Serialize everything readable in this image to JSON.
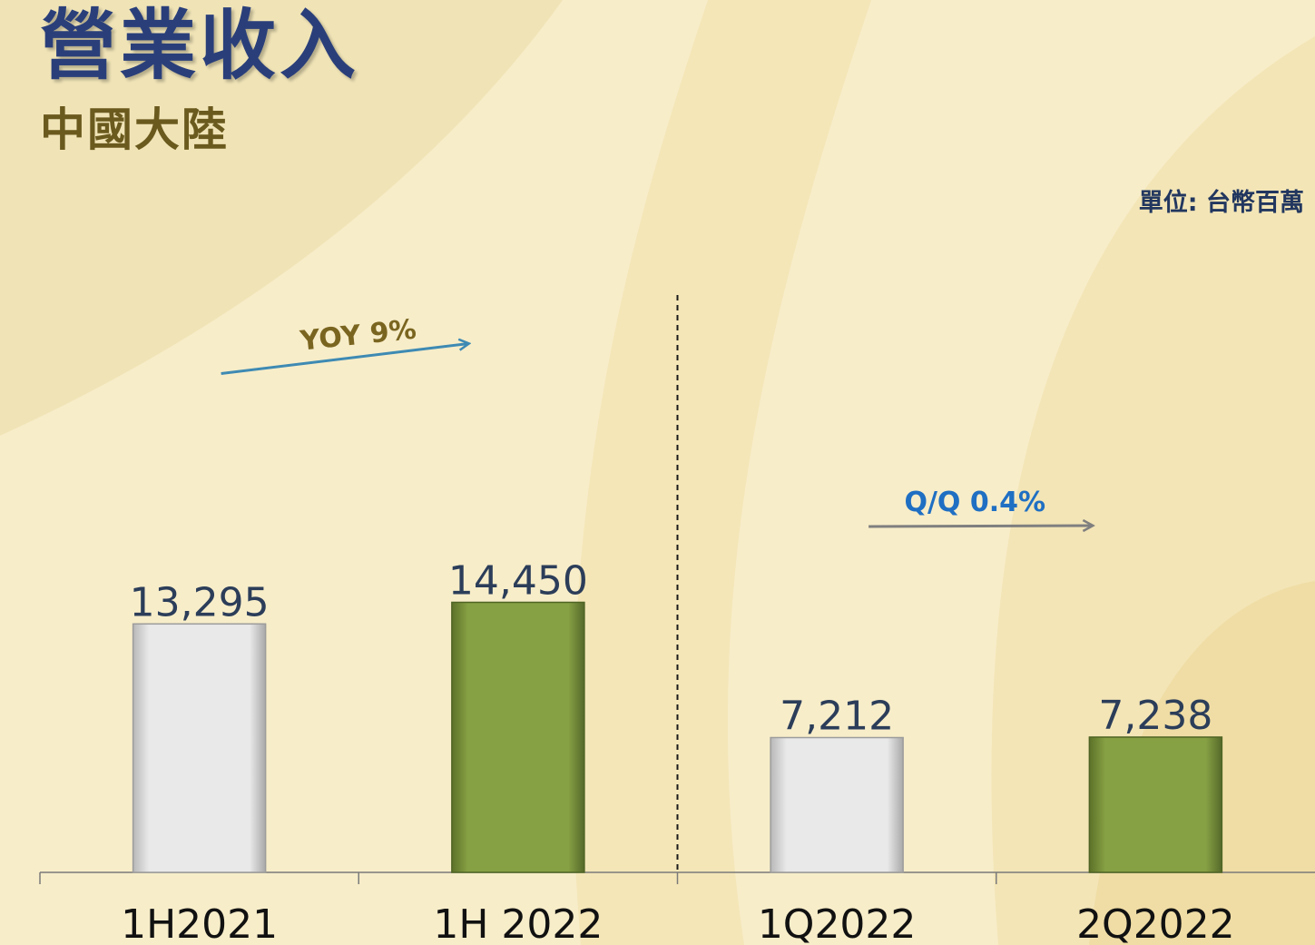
{
  "header": {
    "title": "營業收入",
    "subtitle": "中國大陸",
    "unit": "單位: 台幣百萬"
  },
  "colors": {
    "title": "#2a3f7a",
    "subtitle": "#6b5a1e",
    "unit": "#22375f",
    "bar_prior": "#e3e3e3",
    "bar_current": "#829b42",
    "value_label": "#2b3d59",
    "category_label": "#111111",
    "yoy_text": "#7a6520",
    "yoy_arrow": "#3e8ab3",
    "qoq_text": "#1f6fc3",
    "qoq_arrow": "#7f7f7f"
  },
  "chart_data": {
    "type": "bar",
    "categories": [
      "1H2021",
      "1H 2022",
      "1Q2022",
      "2Q2022"
    ],
    "values": [
      13295,
      14450,
      7212,
      7238
    ],
    "value_labels": [
      "13,295",
      "14,450",
      "7,212",
      "7,238"
    ],
    "bar_styles": [
      "prior",
      "current",
      "prior",
      "current"
    ],
    "ylim": [
      0,
      17000
    ],
    "grid": false,
    "legend": "none",
    "annotations": [
      {
        "text": "YOY 9%",
        "from_category": 0,
        "to_category": 1,
        "style": "yoy"
      },
      {
        "text": "Q/Q 0.4%",
        "from_category": 2,
        "to_category": 3,
        "style": "qoq"
      }
    ],
    "divider_between": [
      1,
      2
    ]
  }
}
